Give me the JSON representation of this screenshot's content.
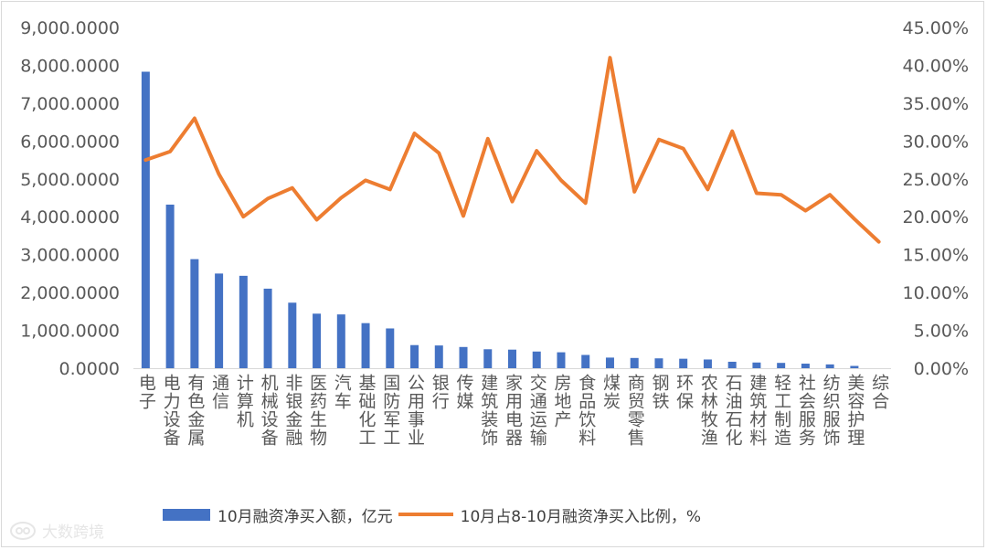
{
  "chart_data": {
    "type": "bar",
    "categories": [
      "电子",
      "电力设备",
      "有色金属",
      "通信",
      "计算机",
      "机械设备",
      "非银金融",
      "医药生物",
      "汽车",
      "基础化工",
      "国防军工",
      "公用事业",
      "银行",
      "传媒",
      "建筑装饰",
      "家用电器",
      "交通运输",
      "房地产",
      "食品饮料",
      "煤炭",
      "商贸零售",
      "钢铁",
      "环保",
      "农林牧渔",
      "石油石化",
      "建筑材料",
      "轻工制造",
      "社会服务",
      "纺织服饰",
      "美容护理",
      "综合"
    ],
    "series": [
      {
        "name": "10月融资净买入额，亿元",
        "kind": "bar",
        "axis": "left",
        "color": "#4472c4",
        "values": [
          7830,
          4320,
          2880,
          2500,
          2440,
          2100,
          1730,
          1440,
          1420,
          1190,
          1050,
          610,
          600,
          560,
          500,
          490,
          440,
          420,
          350,
          280,
          270,
          260,
          250,
          230,
          170,
          150,
          140,
          120,
          100,
          60,
          0
        ]
      },
      {
        "name": "10月占8-10月融资净买入比例，%",
        "kind": "line",
        "axis": "right",
        "color": "#ed7d31",
        "values": [
          27.5,
          28.6,
          33.0,
          25.6,
          20.0,
          22.4,
          23.8,
          19.6,
          22.5,
          24.8,
          23.6,
          31.0,
          28.4,
          20.1,
          30.3,
          22.0,
          28.7,
          24.8,
          21.8,
          41.0,
          23.3,
          30.2,
          29.0,
          23.6,
          31.3,
          23.1,
          22.9,
          20.8,
          22.9,
          19.7,
          16.7
        ]
      }
    ],
    "y_left": {
      "ylim": [
        0,
        9000
      ],
      "ticks": [
        0,
        1000,
        2000,
        3000,
        4000,
        5000,
        6000,
        7000,
        8000,
        9000
      ],
      "tick_labels": [
        "0.0000",
        "1,000.0000",
        "2,000.0000",
        "3,000.0000",
        "4,000.0000",
        "5,000.0000",
        "6,000.0000",
        "7,000.0000",
        "8,000.0000",
        "9,000.0000"
      ]
    },
    "y_right": {
      "ylim": [
        0,
        45
      ],
      "ticks": [
        0,
        5,
        10,
        15,
        20,
        25,
        30,
        35,
        40,
        45
      ],
      "tick_labels": [
        "0.00%",
        "5.00%",
        "10.00%",
        "15.00%",
        "20.00%",
        "25.00%",
        "30.00%",
        "35.00%",
        "40.00%",
        "45.00%"
      ]
    },
    "grid": false,
    "legend_position": "bottom"
  },
  "legend": {
    "bar_label": "10月融资净买入额，亿元",
    "line_label": "10月占8-10月融资净买入比例，%"
  },
  "watermark": {
    "text": "大数跨境"
  },
  "colors": {
    "bar": "#4472c4",
    "line": "#ed7d31",
    "axis": "#d9d9d9",
    "text": "#595959"
  }
}
